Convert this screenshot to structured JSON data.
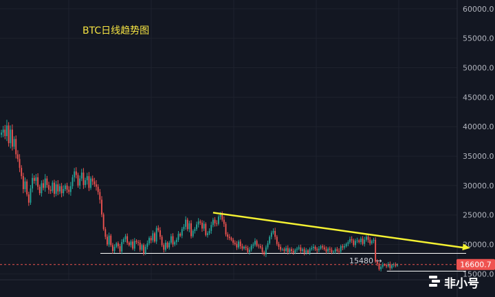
{
  "chart_data": {
    "type": "candlestick",
    "title": "BTC日线趋势图",
    "ylim": [
      14000,
      61500
    ],
    "y_ticks": [
      15000,
      20000,
      25000,
      30000,
      35000,
      40000,
      45000,
      50000,
      55000,
      60000
    ],
    "y_tick_labels": [
      "15000.0",
      "20000.0",
      "25000.0",
      "30000.0",
      "35000.0",
      "40000.0",
      "45000.0",
      "50000.0",
      "55000.0",
      "60000.0"
    ],
    "grid": true,
    "colors": {
      "up": "#26a69a",
      "down": "#ef5350",
      "trend": "#f5f232",
      "background": "#131722",
      "price_label": "#ef5350"
    },
    "close_series": [
      39000,
      39500,
      38400,
      40200,
      37200,
      39500,
      36600,
      37900,
      35300,
      34500,
      33000,
      31600,
      29400,
      30700,
      28500,
      27100,
      29500,
      31300,
      30800,
      31400,
      29800,
      28700,
      30400,
      29600,
      31200,
      30100,
      29300,
      29100,
      30500,
      28600,
      30200,
      29000,
      29900,
      28700,
      29400,
      30000,
      29300,
      28900,
      29900,
      31400,
      32400,
      31800,
      30000,
      31200,
      32200,
      30100,
      30900,
      31600,
      29600,
      31200,
      30700,
      30200,
      29800,
      28900,
      27600,
      25100,
      22600,
      21300,
      20000,
      21500,
      19900,
      18900,
      19600,
      20200,
      19700,
      18800,
      20400,
      20900,
      21400,
      20300,
      19900,
      20500,
      19300,
      20600,
      20400,
      20300,
      19100,
      19900,
      18500,
      19600,
      20200,
      21100,
      20700,
      21900,
      20500,
      22800,
      22400,
      21300,
      19900,
      19100,
      20300,
      19500,
      20300,
      21400,
      20000,
      20400,
      20800,
      21800,
      21500,
      22600,
      23000,
      24200,
      22600,
      23600,
      21400,
      22300,
      22600,
      23400,
      23900,
      23700,
      22700,
      23500,
      21600,
      21900,
      22300,
      23300,
      24200,
      23600,
      23500,
      24700,
      25100,
      24200,
      23500,
      21700,
      21300,
      21100,
      20800,
      20300,
      20100,
      19500,
      20500,
      19700,
      19300,
      19600,
      19400,
      18700,
      19100,
      19800,
      20000,
      20600,
      19800,
      19700,
      19500,
      18700,
      18300,
      19500,
      20200,
      21300,
      22000,
      22300,
      21300,
      20100,
      19600,
      19100,
      19200,
      18900,
      19400,
      18700,
      19200,
      18900,
      18600,
      19100,
      19300,
      19500,
      18900,
      19200,
      18600,
      19000,
      18600,
      19200,
      19400,
      19600,
      19200,
      19000,
      19300,
      19700,
      19500,
      19200,
      18800,
      19300,
      19100,
      18700,
      18800,
      19200,
      18900,
      18800,
      19700,
      19500,
      19700,
      20100,
      20400,
      20900,
      20700,
      19900,
      20600,
      20700,
      20400,
      21000,
      20100,
      20800,
      21300,
      20800,
      20200,
      20600,
      20800,
      17100,
      16700,
      15800,
      16200,
      16600,
      16500,
      16300,
      16700,
      16000,
      16500,
      16600,
      16400,
      16600
    ],
    "trendlines": [
      {
        "kind": "descending-resistance",
        "from": {
          "index": 116,
          "price": 25400
        },
        "to": {
          "index": "right-edge",
          "price": 19400
        }
      },
      {
        "kind": "support",
        "price": 18500,
        "from_index": 55,
        "to_index": "right-edge"
      },
      {
        "kind": "support",
        "price": 15480,
        "from_index": 212,
        "to_index": "right-edge"
      }
    ],
    "current_price": 16600.7,
    "current_price_label": "16600.7",
    "annotations": [
      {
        "label": "15480 →",
        "price": 15480
      }
    ]
  },
  "watermark": {
    "text": "非小号"
  }
}
